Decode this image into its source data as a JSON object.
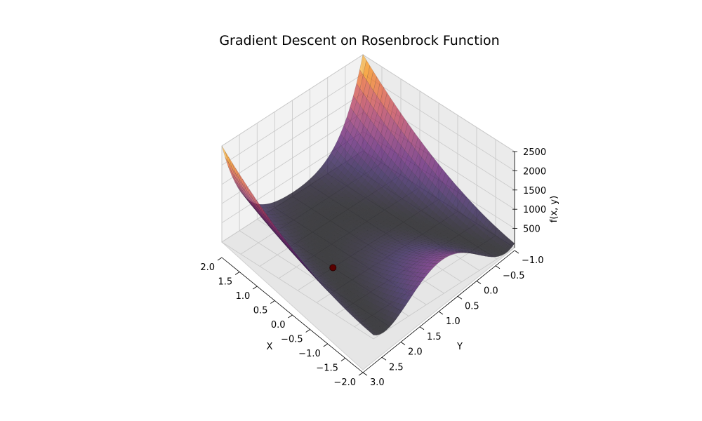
{
  "chart_data": {
    "type": "surface3d",
    "title": "Gradient Descent on Rosenbrock Function",
    "function": "(1 - x)^2 + 100 (y - x^2)^2",
    "colormap": "inferno",
    "x_axis": {
      "label": "X",
      "range": [
        -2.0,
        2.0
      ],
      "ticks": [
        "2.0",
        "1.5",
        "1.0",
        "0.5",
        "0.0",
        "−0.5",
        "−1.0",
        "−1.5",
        "−2.0"
      ]
    },
    "y_axis": {
      "label": "Y",
      "range": [
        -1.0,
        3.0
      ],
      "ticks": [
        "−1.0",
        "−0.5",
        "0.0",
        "0.5",
        "1.0",
        "1.5",
        "2.0",
        "2.5",
        "3.0"
      ]
    },
    "z_axis": {
      "label": "f(x, y)",
      "range": [
        0,
        2500
      ],
      "ticks": [
        "500",
        "1000",
        "1500",
        "2000",
        "2500"
      ]
    },
    "grid": true,
    "point": {
      "x": 1.0,
      "y": 1.0,
      "z": 0,
      "color": "#5a0000"
    }
  }
}
